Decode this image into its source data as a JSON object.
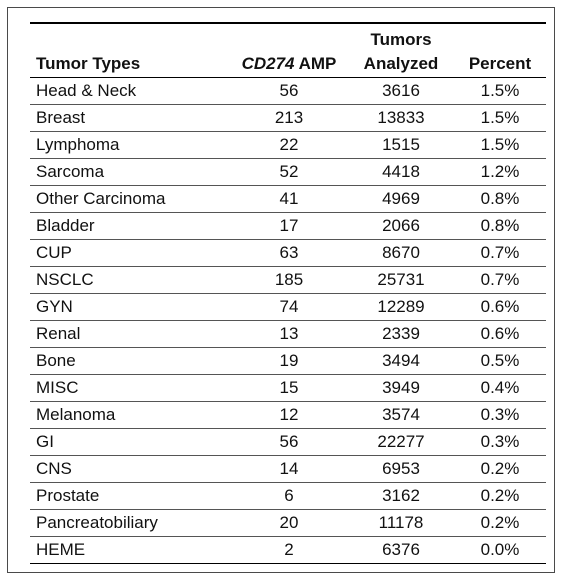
{
  "table": {
    "headers": {
      "tumor_types": "Tumor Types",
      "amp_gene": "CD274",
      "amp_suffix": " AMP",
      "tumors_line1": "Tumors",
      "tumors_line2": "Analyzed",
      "percent": "Percent"
    },
    "rows": [
      {
        "type": "Head & Neck",
        "amp": "56",
        "analyzed": "3616",
        "percent": "1.5%"
      },
      {
        "type": "Breast",
        "amp": "213",
        "analyzed": "13833",
        "percent": "1.5%"
      },
      {
        "type": "Lymphoma",
        "amp": "22",
        "analyzed": "1515",
        "percent": "1.5%"
      },
      {
        "type": "Sarcoma",
        "amp": "52",
        "analyzed": "4418",
        "percent": "1.2%"
      },
      {
        "type": "Other Carcinoma",
        "amp": "41",
        "analyzed": "4969",
        "percent": "0.8%"
      },
      {
        "type": "Bladder",
        "amp": "17",
        "analyzed": "2066",
        "percent": "0.8%"
      },
      {
        "type": "CUP",
        "amp": "63",
        "analyzed": "8670",
        "percent": "0.7%"
      },
      {
        "type": "NSCLC",
        "amp": "185",
        "analyzed": "25731",
        "percent": "0.7%"
      },
      {
        "type": "GYN",
        "amp": "74",
        "analyzed": "12289",
        "percent": "0.6%"
      },
      {
        "type": "Renal",
        "amp": "13",
        "analyzed": "2339",
        "percent": "0.6%"
      },
      {
        "type": "Bone",
        "amp": "19",
        "analyzed": "3494",
        "percent": "0.5%"
      },
      {
        "type": "MISC",
        "amp": "15",
        "analyzed": "3949",
        "percent": "0.4%"
      },
      {
        "type": "Melanoma",
        "amp": "12",
        "analyzed": "3574",
        "percent": "0.3%"
      },
      {
        "type": "GI",
        "amp": "56",
        "analyzed": "22277",
        "percent": "0.3%"
      },
      {
        "type": "CNS",
        "amp": "14",
        "analyzed": "6953",
        "percent": "0.2%"
      },
      {
        "type": "Prostate",
        "amp": "6",
        "analyzed": "3162",
        "percent": "0.2%"
      },
      {
        "type": "Pancreatobiliary",
        "amp": "20",
        "analyzed": "11178",
        "percent": "0.2%"
      },
      {
        "type": "HEME",
        "amp": "2",
        "analyzed": "6376",
        "percent": "0.0%"
      }
    ]
  }
}
